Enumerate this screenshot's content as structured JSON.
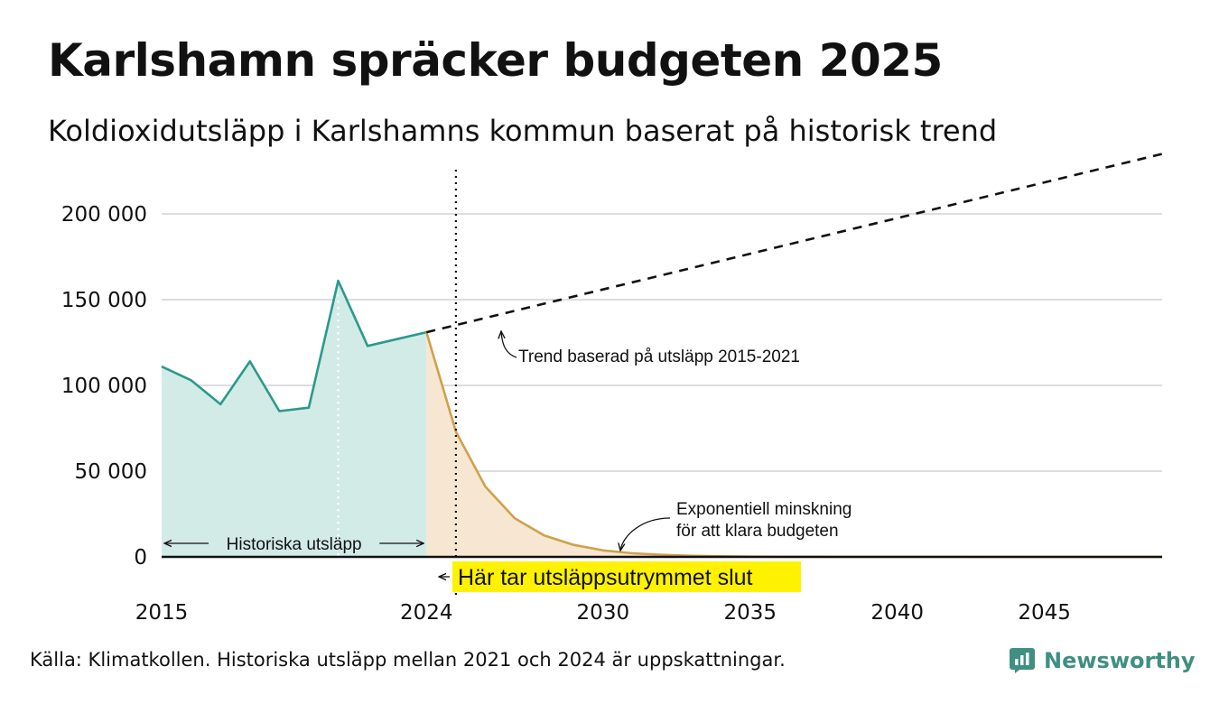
{
  "title": "Karlshamn spräcker budgeten 2025",
  "subtitle": "Koldioxidutsläpp i Karlshamns kommun baserat på historisk trend",
  "source": "Källa: Klimatkollen. Historiska utsläpp mellan 2021 och 2024 är uppskattningar.",
  "brand": "Newsworthy",
  "colors": {
    "historical": "#2a9a8b",
    "historical_fill": "#d2ebe7",
    "budget": "#cfa14a",
    "budget_fill": "#f7e7d2",
    "highlight": "#fff200",
    "grid": "#dddddd"
  },
  "chart_data": {
    "type": "line",
    "xlim": [
      2015,
      2049
    ],
    "ylim": [
      0,
      230000
    ],
    "x_ticks": [
      2015,
      2024,
      2030,
      2035,
      2040,
      2045
    ],
    "x_tick_labels": [
      "2015",
      "2024",
      "2030",
      "2035",
      "2040",
      "2045"
    ],
    "y_ticks": [
      0,
      50000,
      100000,
      150000,
      200000
    ],
    "y_tick_labels": [
      "0",
      "50 000",
      "100 000",
      "150 000",
      "200 000"
    ],
    "grid": "horizontal",
    "series": [
      {
        "kind": "historical-area",
        "x": [
          2015,
          2016,
          2017,
          2018,
          2019,
          2020,
          2021,
          2022,
          2023,
          2024
        ],
        "y": [
          111000,
          103000,
          89000,
          114000,
          85000,
          87000,
          161000,
          123000,
          127000,
          131000
        ]
      },
      {
        "kind": "exponential-decrease-area",
        "x": [
          2024,
          2025,
          2026,
          2027,
          2028,
          2029,
          2030,
          2031,
          2032,
          2033,
          2034,
          2035,
          2036,
          2038,
          2040,
          2045,
          2049
        ],
        "y": [
          131000,
          73000,
          41000,
          22500,
          12500,
          7000,
          3800,
          2100,
          1200,
          650,
          360,
          200,
          110,
          40,
          15,
          2,
          0
        ]
      },
      {
        "kind": "trend-dashed",
        "x": [
          2024,
          2049
        ],
        "y": [
          131000,
          235000
        ]
      }
    ],
    "vertical_markers": [
      {
        "x": 2025,
        "style": "dotted"
      },
      {
        "x": 2021,
        "style": "white-dotted"
      }
    ],
    "annotations": {
      "historical": "Historiska utsläpp",
      "trend": "Trend baserad på utsläpp 2015-2021",
      "exponential_line1": "Exponentiell minskning",
      "exponential_line2": "för att klara budgeten",
      "budget_end": "Här tar utsläppsutrymmet slut"
    }
  }
}
